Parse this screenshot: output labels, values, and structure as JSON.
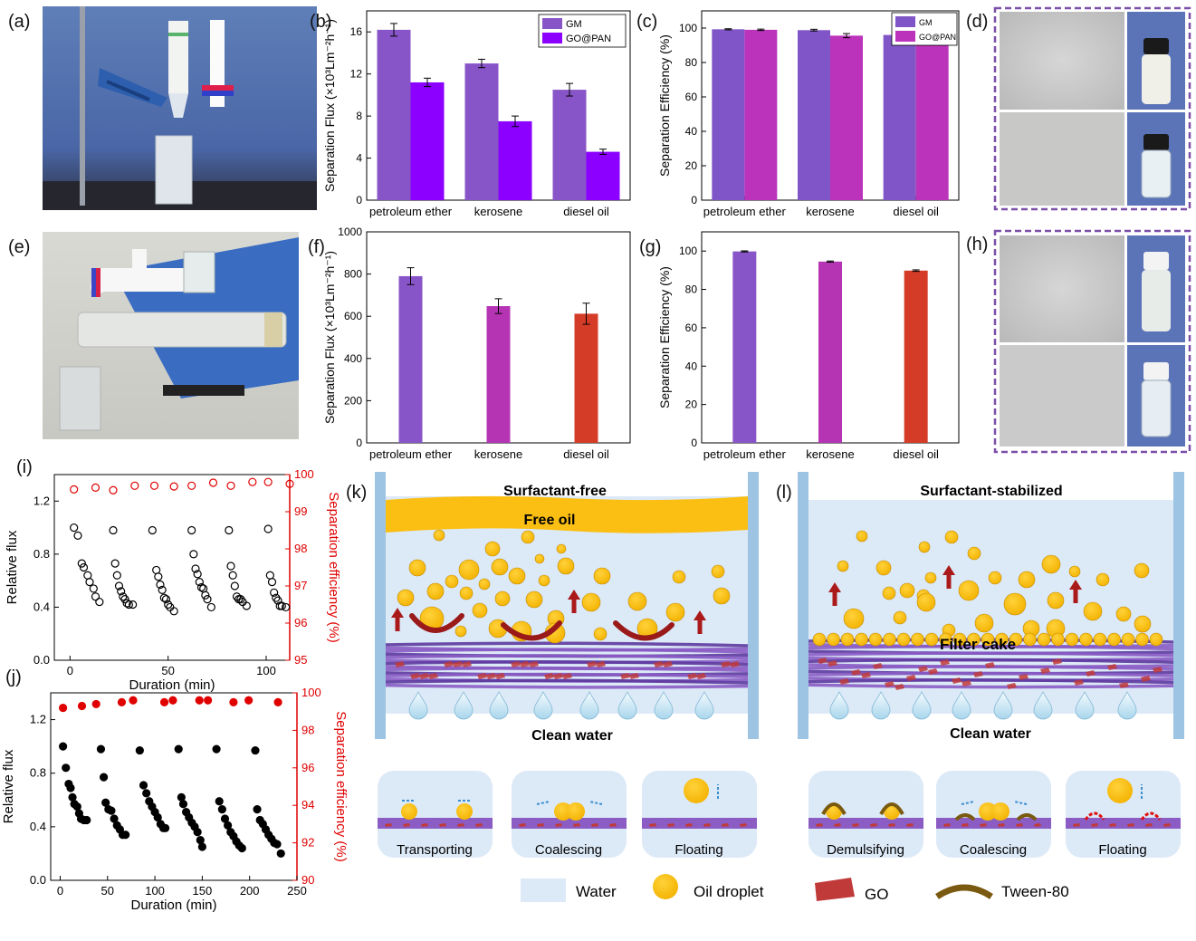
{
  "panel_labels": {
    "a": "(a)",
    "b": "(b)",
    "c": "(c)",
    "d": "(d)",
    "e": "(e)",
    "f": "(f)",
    "g": "(g)",
    "h": "(h)",
    "i": "(i)",
    "j": "(j)",
    "k": "(k)",
    "l": "(l)"
  },
  "colors": {
    "gm": "#8855c8",
    "gopan": "#8b00ff",
    "c_gm": "#8055c8",
    "c_gopan": "#bb33bb",
    "petroleum": "#8855c8",
    "kerosene": "#b434b4",
    "diesel": "#d43c28",
    "oil": "#fbbf14",
    "water": "#dce9f7",
    "fiber": "#8a5cc4",
    "go": "#c03a3a",
    "tween": "#7a5a10",
    "arrow": "#aa1a1a",
    "red": "#e00000"
  },
  "icons": {
    "up_arrow": "up-arrow-icon",
    "water_drop": "water-drop-icon"
  },
  "chart_data": [
    {
      "id": "b",
      "type": "bar",
      "categories": [
        "petroleum ether",
        "kerosene",
        "diesel oil"
      ],
      "series": [
        {
          "name": "GM",
          "values": [
            16.2,
            13.0,
            10.5
          ],
          "errors": [
            0.6,
            0.4,
            0.6
          ]
        },
        {
          "name": "GO@PAN",
          "values": [
            11.2,
            7.5,
            4.6
          ],
          "errors": [
            0.4,
            0.5,
            0.25
          ]
        }
      ],
      "ylabel": "Separation Flux (×10³Lm⁻²h⁻¹)",
      "ylim": [
        0,
        18
      ],
      "yticks": [
        0,
        4,
        8,
        12,
        16
      ],
      "legend": "top-right"
    },
    {
      "id": "c",
      "type": "bar",
      "categories": [
        "petroleum ether",
        "kerosene",
        "diesel oil"
      ],
      "series": [
        {
          "name": "GM",
          "values": [
            99.3,
            98.8,
            96.0
          ],
          "errors": [
            0.3,
            0.5,
            0.4
          ]
        },
        {
          "name": "GO@PAN",
          "values": [
            99.0,
            95.6,
            95.3
          ],
          "errors": [
            0.4,
            1.2,
            0.4
          ]
        }
      ],
      "ylabel": "Separation Efficiency (%)",
      "ylim": [
        0,
        110
      ],
      "yticks": [
        0,
        20,
        40,
        60,
        80,
        100
      ],
      "legend": "top-right"
    },
    {
      "id": "f",
      "type": "bar",
      "categories": [
        "petroleum ether",
        "kerosene",
        "diesel  oil"
      ],
      "values": [
        790,
        648,
        612
      ],
      "errors": [
        40,
        35,
        50
      ],
      "ylabel": "Separation Flux (×10³Lm⁻²h⁻¹)",
      "ylim": [
        0,
        1000
      ],
      "yticks": [
        0,
        200,
        400,
        600,
        800,
        1000
      ]
    },
    {
      "id": "g",
      "type": "bar",
      "categories": [
        "petroleum ether",
        "kerosene",
        "diesel oil"
      ],
      "values": [
        99.8,
        94.5,
        89.8
      ],
      "errors": [
        0.3,
        0.3,
        0.4
      ],
      "ylabel": "Separation Efficiency (%)",
      "ylim": [
        0,
        110
      ],
      "yticks": [
        0,
        20,
        40,
        60,
        80,
        100
      ]
    },
    {
      "id": "i",
      "type": "scatter",
      "xlabel": "Duration (min)",
      "ylabel": "Relative flux",
      "ylabel_right": "Separation efficiency (%)",
      "xlim": [
        -8,
        112
      ],
      "xticks": [
        0,
        50,
        100
      ],
      "ylim": [
        0,
        1.4
      ],
      "yticks": [
        0,
        0.4,
        0.8,
        1.2
      ],
      "ylim_right": [
        95,
        100
      ],
      "yticks_right": [
        95,
        96,
        97,
        98,
        99,
        100
      ],
      "flux": [
        [
          2,
          1.0
        ],
        [
          4,
          0.94
        ],
        [
          6,
          0.73
        ],
        [
          7,
          0.7
        ],
        [
          9,
          0.64
        ],
        [
          10,
          0.59
        ],
        [
          12,
          0.54
        ],
        [
          13,
          0.48
        ],
        [
          15,
          0.44
        ],
        [
          22,
          0.98
        ],
        [
          23,
          0.73
        ],
        [
          24,
          0.64
        ],
        [
          25,
          0.56
        ],
        [
          26,
          0.52
        ],
        [
          27,
          0.48
        ],
        [
          28,
          0.46
        ],
        [
          29,
          0.43
        ],
        [
          30,
          0.42
        ],
        [
          32,
          0.42
        ],
        [
          42,
          0.98
        ],
        [
          44,
          0.68
        ],
        [
          45,
          0.63
        ],
        [
          46,
          0.57
        ],
        [
          47,
          0.53
        ],
        [
          48,
          0.47
        ],
        [
          49,
          0.46
        ],
        [
          50,
          0.42
        ],
        [
          51,
          0.4
        ],
        [
          53,
          0.37
        ],
        [
          62,
          0.98
        ],
        [
          63,
          0.8
        ],
        [
          64,
          0.69
        ],
        [
          65,
          0.65
        ],
        [
          66,
          0.59
        ],
        [
          67,
          0.55
        ],
        [
          68,
          0.54
        ],
        [
          69,
          0.49
        ],
        [
          70,
          0.46
        ],
        [
          72,
          0.4
        ],
        [
          81,
          0.98
        ],
        [
          82,
          0.71
        ],
        [
          83,
          0.64
        ],
        [
          84,
          0.56
        ],
        [
          85,
          0.48
        ],
        [
          86,
          0.46
        ],
        [
          87,
          0.46
        ],
        [
          88,
          0.44
        ],
        [
          90,
          0.41
        ],
        [
          101,
          0.99
        ],
        [
          102,
          0.64
        ],
        [
          103,
          0.59
        ],
        [
          104,
          0.51
        ],
        [
          105,
          0.47
        ],
        [
          106,
          0.45
        ],
        [
          107,
          0.41
        ],
        [
          108,
          0.41
        ],
        [
          110,
          0.4
        ]
      ],
      "efficiency": [
        [
          2,
          99.6
        ],
        [
          13,
          99.65
        ],
        [
          22,
          99.58
        ],
        [
          33,
          99.7
        ],
        [
          43,
          99.7
        ],
        [
          53,
          99.68
        ],
        [
          62,
          99.7
        ],
        [
          73,
          99.78
        ],
        [
          82,
          99.7
        ],
        [
          93,
          99.8
        ],
        [
          101,
          99.8
        ],
        [
          112,
          99.75
        ]
      ]
    },
    {
      "id": "j",
      "type": "scatter",
      "xlabel": "Duration (min)",
      "ylabel": "Relative flux",
      "ylabel_right": "Separation efficiency (%)",
      "xlim": [
        -10,
        250
      ],
      "xticks": [
        0,
        50,
        100,
        150,
        200,
        250
      ],
      "ylim": [
        0,
        1.4
      ],
      "yticks": [
        0,
        0.4,
        0.8,
        1.2
      ],
      "ylim_right": [
        90,
        100
      ],
      "yticks_right": [
        90,
        92,
        94,
        96,
        98,
        100
      ],
      "flux": [
        [
          3,
          1.0
        ],
        [
          6,
          0.84
        ],
        [
          9,
          0.72
        ],
        [
          11,
          0.69
        ],
        [
          13,
          0.62
        ],
        [
          15,
          0.57
        ],
        [
          18,
          0.55
        ],
        [
          20,
          0.5
        ],
        [
          22,
          0.46
        ],
        [
          25,
          0.45
        ],
        [
          28,
          0.45
        ],
        [
          43,
          0.98
        ],
        [
          46,
          0.77
        ],
        [
          48,
          0.58
        ],
        [
          51,
          0.53
        ],
        [
          54,
          0.52
        ],
        [
          57,
          0.46
        ],
        [
          60,
          0.41
        ],
        [
          63,
          0.38
        ],
        [
          66,
          0.34
        ],
        [
          69,
          0.34
        ],
        [
          84,
          0.97
        ],
        [
          88,
          0.71
        ],
        [
          91,
          0.65
        ],
        [
          94,
          0.59
        ],
        [
          97,
          0.55
        ],
        [
          100,
          0.51
        ],
        [
          103,
          0.47
        ],
        [
          106,
          0.42
        ],
        [
          109,
          0.39
        ],
        [
          111,
          0.39
        ],
        [
          125,
          0.98
        ],
        [
          128,
          0.62
        ],
        [
          130,
          0.57
        ],
        [
          133,
          0.51
        ],
        [
          136,
          0.47
        ],
        [
          139,
          0.43
        ],
        [
          142,
          0.4
        ],
        [
          145,
          0.36
        ],
        [
          148,
          0.3
        ],
        [
          150,
          0.25
        ],
        [
          165,
          0.98
        ],
        [
          168,
          0.59
        ],
        [
          171,
          0.53
        ],
        [
          174,
          0.46
        ],
        [
          177,
          0.41
        ],
        [
          180,
          0.36
        ],
        [
          183,
          0.33
        ],
        [
          186,
          0.29
        ],
        [
          189,
          0.26
        ],
        [
          192,
          0.24
        ],
        [
          206,
          0.97
        ],
        [
          208,
          0.53
        ],
        [
          211,
          0.45
        ],
        [
          214,
          0.42
        ],
        [
          217,
          0.38
        ],
        [
          220,
          0.34
        ],
        [
          223,
          0.31
        ],
        [
          226,
          0.28
        ],
        [
          229,
          0.27
        ],
        [
          233,
          0.2
        ]
      ],
      "efficiency": [
        [
          3,
          99.2
        ],
        [
          23,
          99.3
        ],
        [
          38,
          99.4
        ],
        [
          65,
          99.5
        ],
        [
          77,
          99.6
        ],
        [
          110,
          99.5
        ],
        [
          119,
          99.6
        ],
        [
          147,
          99.6
        ],
        [
          156,
          99.6
        ],
        [
          183,
          99.5
        ],
        [
          199,
          99.6
        ],
        [
          230,
          99.5
        ]
      ]
    }
  ],
  "schematic_k": {
    "title": "Surfactant-free",
    "free_oil": "Free oil",
    "clean_water": "Clean water"
  },
  "schematic_l": {
    "title": "Surfactant-stabilized",
    "filter_cake": "Filter cake",
    "clean_water": "Clean water"
  },
  "steps_k": [
    "Transporting",
    "Coalescing",
    "Floating"
  ],
  "steps_l": [
    "Demulsifying",
    "Coalescing",
    "Floating"
  ],
  "legend": {
    "water": "Water",
    "oil": "Oil droplet",
    "go": "GO",
    "tween": "Tween-80"
  }
}
